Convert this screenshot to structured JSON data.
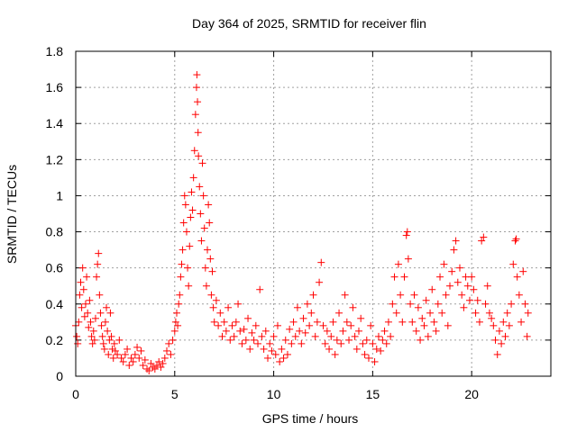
{
  "chart_data": {
    "type": "scatter",
    "title": "Day 364 of 2025, SRMTID for receiver flin",
    "xlabel": "GPS time / hours",
    "ylabel": "SRMTID / TECUs",
    "xlim": [
      0,
      24
    ],
    "ylim": [
      0,
      1.8
    ],
    "xticks": [
      0,
      5,
      10,
      15,
      20
    ],
    "yticks": [
      0,
      0.2,
      0.4,
      0.6,
      0.8,
      1,
      1.2,
      1.4,
      1.6,
      1.8
    ],
    "xtick_labels": [
      "0",
      "5",
      "10",
      "15",
      "20"
    ],
    "ytick_labels": [
      "0",
      "0.2",
      "0.4",
      "0.6",
      "0.8",
      "1",
      "1.2",
      "1.4",
      "1.6",
      "1.8"
    ],
    "grid": true,
    "marker": "+",
    "color": "#ff0000",
    "series": [
      {
        "name": "SRMTID",
        "points": [
          [
            0.0,
            0.28
          ],
          [
            0.05,
            0.22
          ],
          [
            0.1,
            0.18
          ],
          [
            0.15,
            0.3
          ],
          [
            0.2,
            0.45
          ],
          [
            0.25,
            0.52
          ],
          [
            0.3,
            0.38
          ],
          [
            0.35,
            0.6
          ],
          [
            0.4,
            0.48
          ],
          [
            0.45,
            0.33
          ],
          [
            0.5,
            0.4
          ],
          [
            0.55,
            0.55
          ],
          [
            0.6,
            0.35
          ],
          [
            0.65,
            0.27
          ],
          [
            0.7,
            0.42
          ],
          [
            0.75,
            0.3
          ],
          [
            0.8,
            0.22
          ],
          [
            0.85,
            0.18
          ],
          [
            0.9,
            0.25
          ],
          [
            0.95,
            0.2
          ],
          [
            1.0,
            0.32
          ],
          [
            1.05,
            0.55
          ],
          [
            1.1,
            0.62
          ],
          [
            1.15,
            0.68
          ],
          [
            1.2,
            0.45
          ],
          [
            1.25,
            0.35
          ],
          [
            1.3,
            0.28
          ],
          [
            1.35,
            0.22
          ],
          [
            1.4,
            0.18
          ],
          [
            1.45,
            0.15
          ],
          [
            1.5,
            0.3
          ],
          [
            1.55,
            0.38
          ],
          [
            1.6,
            0.25
          ],
          [
            1.65,
            0.12
          ],
          [
            1.7,
            0.2
          ],
          [
            1.75,
            0.35
          ],
          [
            1.8,
            0.22
          ],
          [
            1.85,
            0.15
          ],
          [
            1.9,
            0.1
          ],
          [
            1.95,
            0.18
          ],
          [
            2.0,
            0.14
          ],
          [
            2.1,
            0.12
          ],
          [
            2.2,
            0.2
          ],
          [
            2.3,
            0.1
          ],
          [
            2.4,
            0.08
          ],
          [
            2.5,
            0.12
          ],
          [
            2.6,
            0.15
          ],
          [
            2.7,
            0.06
          ],
          [
            2.8,
            0.1
          ],
          [
            2.9,
            0.08
          ],
          [
            3.0,
            0.12
          ],
          [
            3.1,
            0.16
          ],
          [
            3.2,
            0.1
          ],
          [
            3.3,
            0.14
          ],
          [
            3.4,
            0.06
          ],
          [
            3.5,
            0.09
          ],
          [
            3.6,
            0.04
          ],
          [
            3.7,
            0.03
          ],
          [
            3.8,
            0.07
          ],
          [
            3.9,
            0.05
          ],
          [
            4.0,
            0.04
          ],
          [
            4.1,
            0.06
          ],
          [
            4.2,
            0.08
          ],
          [
            4.3,
            0.05
          ],
          [
            4.4,
            0.07
          ],
          [
            4.5,
            0.1
          ],
          [
            4.6,
            0.14
          ],
          [
            4.7,
            0.18
          ],
          [
            4.8,
            0.12
          ],
          [
            4.9,
            0.2
          ],
          [
            5.0,
            0.25
          ],
          [
            5.05,
            0.3
          ],
          [
            5.1,
            0.35
          ],
          [
            5.15,
            0.28
          ],
          [
            5.2,
            0.4
          ],
          [
            5.25,
            0.45
          ],
          [
            5.3,
            0.55
          ],
          [
            5.35,
            0.62
          ],
          [
            5.4,
            0.7
          ],
          [
            5.45,
            0.85
          ],
          [
            5.5,
            1.0
          ],
          [
            5.55,
            0.95
          ],
          [
            5.6,
            0.8
          ],
          [
            5.65,
            0.6
          ],
          [
            5.7,
            0.5
          ],
          [
            5.75,
            0.72
          ],
          [
            5.8,
            0.88
          ],
          [
            5.85,
            1.02
          ],
          [
            5.9,
            0.92
          ],
          [
            5.95,
            1.1
          ],
          [
            6.0,
            1.25
          ],
          [
            6.05,
            1.45
          ],
          [
            6.1,
            1.6
          ],
          [
            6.12,
            1.67
          ],
          [
            6.15,
            1.52
          ],
          [
            6.18,
            1.35
          ],
          [
            6.2,
            1.22
          ],
          [
            6.25,
            1.05
          ],
          [
            6.3,
            0.9
          ],
          [
            6.35,
            0.75
          ],
          [
            6.4,
            1.18
          ],
          [
            6.45,
            1.0
          ],
          [
            6.5,
            0.82
          ],
          [
            6.55,
            0.6
          ],
          [
            6.6,
            0.5
          ],
          [
            6.65,
            0.7
          ],
          [
            6.7,
            0.95
          ],
          [
            6.75,
            0.85
          ],
          [
            6.8,
            0.65
          ],
          [
            6.85,
            0.45
          ],
          [
            6.9,
            0.58
          ],
          [
            6.95,
            0.38
          ],
          [
            7.0,
            0.3
          ],
          [
            7.1,
            0.42
          ],
          [
            7.2,
            0.28
          ],
          [
            7.3,
            0.35
          ],
          [
            7.4,
            0.22
          ],
          [
            7.5,
            0.3
          ],
          [
            7.6,
            0.25
          ],
          [
            7.7,
            0.38
          ],
          [
            7.8,
            0.2
          ],
          [
            7.9,
            0.28
          ],
          [
            8.0,
            0.22
          ],
          [
            8.1,
            0.3
          ],
          [
            8.2,
            0.4
          ],
          [
            8.3,
            0.25
          ],
          [
            8.4,
            0.18
          ],
          [
            8.5,
            0.26
          ],
          [
            8.6,
            0.2
          ],
          [
            8.7,
            0.32
          ],
          [
            8.8,
            0.15
          ],
          [
            8.9,
            0.24
          ],
          [
            9.0,
            0.2
          ],
          [
            9.1,
            0.28
          ],
          [
            9.2,
            0.18
          ],
          [
            9.3,
            0.48
          ],
          [
            9.4,
            0.22
          ],
          [
            9.5,
            0.15
          ],
          [
            9.6,
            0.25
          ],
          [
            9.7,
            0.1
          ],
          [
            9.8,
            0.18
          ],
          [
            9.9,
            0.14
          ],
          [
            10.0,
            0.22
          ],
          [
            10.1,
            0.12
          ],
          [
            10.2,
            0.28
          ],
          [
            10.3,
            0.08
          ],
          [
            10.4,
            0.15
          ],
          [
            10.5,
            0.1
          ],
          [
            10.6,
            0.2
          ],
          [
            10.7,
            0.12
          ],
          [
            10.8,
            0.26
          ],
          [
            10.9,
            0.18
          ],
          [
            11.0,
            0.3
          ],
          [
            11.1,
            0.22
          ],
          [
            11.2,
            0.38
          ],
          [
            11.3,
            0.25
          ],
          [
            11.4,
            0.18
          ],
          [
            11.5,
            0.32
          ],
          [
            11.6,
            0.24
          ],
          [
            11.7,
            0.4
          ],
          [
            11.8,
            0.28
          ],
          [
            11.9,
            0.35
          ],
          [
            12.0,
            0.45
          ],
          [
            12.1,
            0.22
          ],
          [
            12.2,
            0.3
          ],
          [
            12.3,
            0.52
          ],
          [
            12.4,
            0.63
          ],
          [
            12.5,
            0.28
          ],
          [
            12.6,
            0.18
          ],
          [
            12.7,
            0.25
          ],
          [
            12.8,
            0.15
          ],
          [
            12.9,
            0.22
          ],
          [
            13.0,
            0.3
          ],
          [
            13.1,
            0.12
          ],
          [
            13.2,
            0.2
          ],
          [
            13.3,
            0.35
          ],
          [
            13.4,
            0.18
          ],
          [
            13.5,
            0.25
          ],
          [
            13.6,
            0.45
          ],
          [
            13.7,
            0.3
          ],
          [
            13.8,
            0.2
          ],
          [
            13.9,
            0.28
          ],
          [
            14.0,
            0.38
          ],
          [
            14.1,
            0.22
          ],
          [
            14.2,
            0.15
          ],
          [
            14.3,
            0.25
          ],
          [
            14.4,
            0.32
          ],
          [
            14.5,
            0.18
          ],
          [
            14.6,
            0.12
          ],
          [
            14.7,
            0.2
          ],
          [
            14.8,
            0.1
          ],
          [
            14.9,
            0.28
          ],
          [
            15.0,
            0.18
          ],
          [
            15.1,
            0.08
          ],
          [
            15.2,
            0.15
          ],
          [
            15.3,
            0.22
          ],
          [
            15.4,
            0.14
          ],
          [
            15.5,
            0.2
          ],
          [
            15.6,
            0.25
          ],
          [
            15.7,
            0.18
          ],
          [
            15.8,
            0.3
          ],
          [
            15.9,
            0.22
          ],
          [
            16.0,
            0.4
          ],
          [
            16.1,
            0.55
          ],
          [
            16.2,
            0.35
          ],
          [
            16.3,
            0.62
          ],
          [
            16.4,
            0.45
          ],
          [
            16.5,
            0.3
          ],
          [
            16.6,
            0.55
          ],
          [
            16.7,
            0.78
          ],
          [
            16.75,
            0.8
          ],
          [
            16.8,
            0.65
          ],
          [
            16.9,
            0.4
          ],
          [
            17.0,
            0.3
          ],
          [
            17.1,
            0.45
          ],
          [
            17.2,
            0.25
          ],
          [
            17.3,
            0.38
          ],
          [
            17.4,
            0.2
          ],
          [
            17.5,
            0.32
          ],
          [
            17.6,
            0.28
          ],
          [
            17.7,
            0.42
          ],
          [
            17.8,
            0.22
          ],
          [
            17.9,
            0.35
          ],
          [
            18.0,
            0.48
          ],
          [
            18.1,
            0.3
          ],
          [
            18.2,
            0.25
          ],
          [
            18.3,
            0.4
          ],
          [
            18.4,
            0.55
          ],
          [
            18.5,
            0.35
          ],
          [
            18.6,
            0.62
          ],
          [
            18.7,
            0.45
          ],
          [
            18.8,
            0.28
          ],
          [
            18.9,
            0.5
          ],
          [
            19.0,
            0.58
          ],
          [
            19.1,
            0.7
          ],
          [
            19.2,
            0.75
          ],
          [
            19.3,
            0.52
          ],
          [
            19.4,
            0.6
          ],
          [
            19.5,
            0.45
          ],
          [
            19.6,
            0.38
          ],
          [
            19.7,
            0.55
          ],
          [
            19.8,
            0.5
          ],
          [
            19.9,
            0.42
          ],
          [
            20.0,
            0.55
          ],
          [
            20.1,
            0.48
          ],
          [
            20.2,
            0.35
          ],
          [
            20.3,
            0.42
          ],
          [
            20.4,
            0.3
          ],
          [
            20.5,
            0.75
          ],
          [
            20.6,
            0.77
          ],
          [
            20.7,
            0.4
          ],
          [
            20.8,
            0.5
          ],
          [
            20.9,
            0.35
          ],
          [
            21.0,
            0.32
          ],
          [
            21.1,
            0.28
          ],
          [
            21.2,
            0.2
          ],
          [
            21.3,
            0.12
          ],
          [
            21.4,
            0.25
          ],
          [
            21.5,
            0.18
          ],
          [
            21.6,
            0.3
          ],
          [
            21.7,
            0.22
          ],
          [
            21.8,
            0.35
          ],
          [
            21.9,
            0.28
          ],
          [
            22.0,
            0.4
          ],
          [
            22.1,
            0.62
          ],
          [
            22.2,
            0.75
          ],
          [
            22.25,
            0.76
          ],
          [
            22.3,
            0.55
          ],
          [
            22.4,
            0.45
          ],
          [
            22.5,
            0.3
          ],
          [
            22.6,
            0.58
          ],
          [
            22.7,
            0.4
          ],
          [
            22.8,
            0.22
          ],
          [
            22.85,
            0.35
          ]
        ]
      }
    ]
  }
}
